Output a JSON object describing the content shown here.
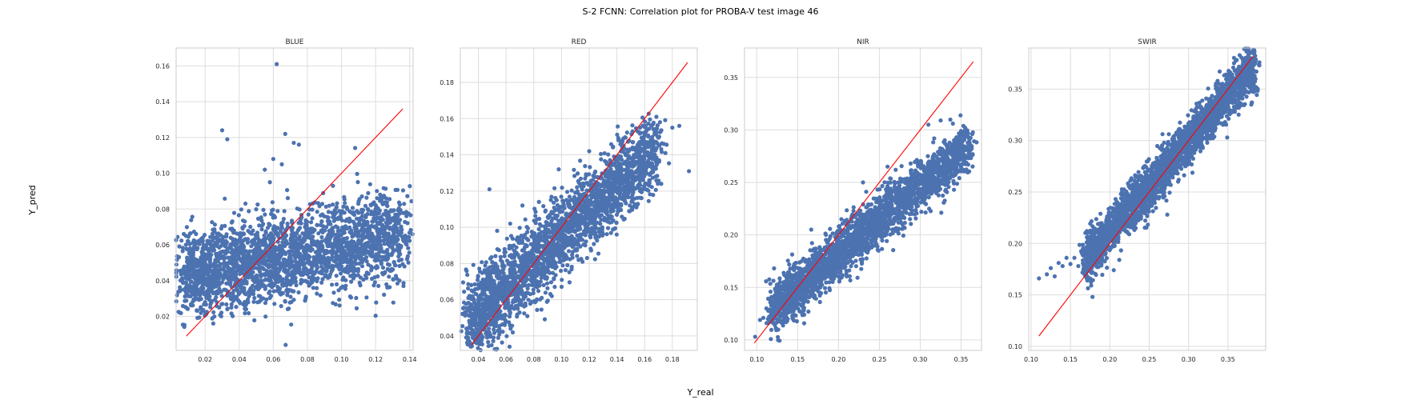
{
  "figure": {
    "suptitle": "S-2 FCNN: Correlation plot for PROBA-V test image 46",
    "xlabel": "Y_real",
    "ylabel": "Y_pred"
  },
  "colors": {
    "points": "#4c72b0",
    "identity_line": "#ff0000",
    "grid": "#dddddd",
    "frame": "#cccccc"
  },
  "chart_data": [
    {
      "type": "scatter",
      "title": "BLUE",
      "xlim": [
        0.003,
        0.142
      ],
      "ylim": [
        0.001,
        0.17
      ],
      "xticks": [
        0.02,
        0.04,
        0.06,
        0.08,
        0.1,
        0.12,
        0.14
      ],
      "yticks": [
        0.02,
        0.04,
        0.06,
        0.08,
        0.1,
        0.12,
        0.14,
        0.16
      ],
      "grid": true,
      "identity_line": [
        0.009,
        0.136
      ],
      "cloud": {
        "x_range": [
          0.008,
          0.136
        ],
        "y_center": [
          0.042,
          0.066
        ],
        "y_spread": 0.012
      },
      "outliers": [
        [
          0.062,
          0.161
        ],
        [
          0.03,
          0.124
        ],
        [
          0.033,
          0.119
        ],
        [
          0.067,
          0.122
        ],
        [
          0.072,
          0.117
        ],
        [
          0.075,
          0.116
        ],
        [
          0.06,
          0.108
        ],
        [
          0.065,
          0.105
        ],
        [
          0.055,
          0.102
        ],
        [
          0.058,
          0.095
        ],
        [
          0.095,
          0.093
        ],
        [
          0.12,
          0.08
        ],
        [
          0.126,
          0.079
        ],
        [
          0.134,
          0.08
        ],
        [
          0.118,
          0.073
        ],
        [
          0.11,
          0.066
        ]
      ]
    },
    {
      "type": "scatter",
      "title": "RED",
      "xlim": [
        0.027,
        0.198
      ],
      "ylim": [
        0.032,
        0.199
      ],
      "xticks": [
        0.04,
        0.06,
        0.08,
        0.1,
        0.12,
        0.14,
        0.16,
        0.18
      ],
      "yticks": [
        0.04,
        0.06,
        0.08,
        0.1,
        0.12,
        0.14,
        0.16,
        0.18
      ],
      "grid": true,
      "identity_line": [
        0.035,
        0.191
      ],
      "cloud": {
        "x_range": [
          0.034,
          0.17
        ],
        "y_center": [
          0.048,
          0.145
        ],
        "y_spread": 0.011
      },
      "outliers": [
        [
          0.048,
          0.121
        ],
        [
          0.192,
          0.131
        ],
        [
          0.18,
          0.155
        ],
        [
          0.185,
          0.156
        ],
        [
          0.175,
          0.141
        ],
        [
          0.168,
          0.128
        ],
        [
          0.172,
          0.124
        ],
        [
          0.12,
          0.142
        ],
        [
          0.098,
          0.132
        ],
        [
          0.063,
          0.102
        ],
        [
          0.093,
          0.062
        ],
        [
          0.085,
          0.07
        ]
      ]
    },
    {
      "type": "scatter",
      "title": "NIR",
      "xlim": [
        0.085,
        0.375
      ],
      "ylim": [
        0.09,
        0.378
      ],
      "xticks": [
        0.1,
        0.15,
        0.2,
        0.25,
        0.3,
        0.35
      ],
      "yticks": [
        0.1,
        0.15,
        0.2,
        0.25,
        0.3,
        0.35
      ],
      "grid": true,
      "identity_line": [
        0.097,
        0.365
      ],
      "cloud": {
        "x_range": [
          0.12,
          0.36
        ],
        "y_center": [
          0.13,
          0.285
        ],
        "y_spread": 0.012
      },
      "outliers": [
        [
          0.098,
          0.103
        ],
        [
          0.104,
          0.119
        ],
        [
          0.108,
          0.121
        ],
        [
          0.112,
          0.116
        ],
        [
          0.12,
          0.135
        ],
        [
          0.125,
          0.13
        ],
        [
          0.35,
          0.299
        ],
        [
          0.355,
          0.302
        ],
        [
          0.34,
          0.306
        ],
        [
          0.325,
          0.309
        ],
        [
          0.31,
          0.305
        ],
        [
          0.26,
          0.265
        ],
        [
          0.27,
          0.262
        ],
        [
          0.23,
          0.25
        ]
      ]
    },
    {
      "type": "scatter",
      "title": "SWIR",
      "xlim": [
        0.097,
        0.398
      ],
      "ylim": [
        0.096,
        0.39
      ],
      "xticks": [
        0.1,
        0.15,
        0.2,
        0.25,
        0.3,
        0.35
      ],
      "yticks": [
        0.1,
        0.15,
        0.2,
        0.25,
        0.3,
        0.35
      ],
      "grid": true,
      "identity_line": [
        0.11,
        0.382
      ],
      "cloud": {
        "x_range": [
          0.17,
          0.385
        ],
        "y_center": [
          0.185,
          0.375
        ],
        "y_spread": 0.011
      },
      "outliers": [
        [
          0.11,
          0.166
        ],
        [
          0.12,
          0.17
        ],
        [
          0.125,
          0.176
        ],
        [
          0.13,
          0.168
        ],
        [
          0.135,
          0.181
        ],
        [
          0.14,
          0.178
        ],
        [
          0.145,
          0.186
        ],
        [
          0.15,
          0.18
        ],
        [
          0.155,
          0.186
        ],
        [
          0.16,
          0.178
        ],
        [
          0.178,
          0.148
        ],
        [
          0.212,
          0.184
        ],
        [
          0.205,
          0.174
        ],
        [
          0.273,
          0.228
        ],
        [
          0.39,
          0.376
        ],
        [
          0.37,
          0.372
        ]
      ]
    }
  ]
}
